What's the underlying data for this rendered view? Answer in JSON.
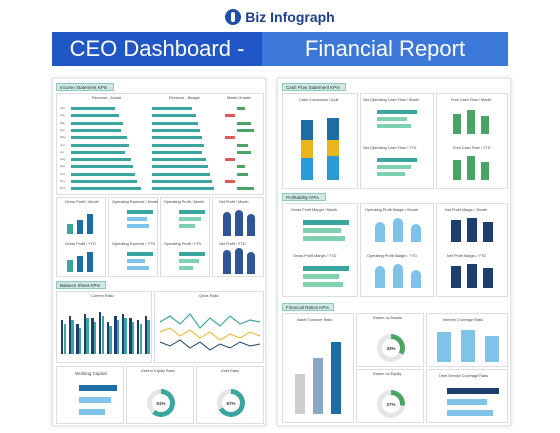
{
  "brand": {
    "name": "Biz Infograph"
  },
  "banner": {
    "left": "CEO Dashboard -",
    "right": "Financial Report"
  },
  "income": {
    "title": "Income Statement KPIs",
    "col1": "Revenue - Actual",
    "col2": "Revenue - Budget",
    "col3": "Model Growth",
    "rows": [
      "Jan",
      "Feb",
      "Mar",
      "Apr",
      "May",
      "Jun",
      "Jul",
      "Aug",
      "Sep",
      "Oct",
      "Nov",
      "Dec"
    ],
    "gross_profit": "Gross Profit / Month",
    "opex": "Operating Expense / Month",
    "op_profit": "Operating Profit / Month",
    "net_profit": "Net Profit / Month",
    "gross_profit_ytd": "Gross Profit / YTD",
    "opex_ytd": "Operating Expense / YTD",
    "op_profit_ytd": "Operating Profit / YTD",
    "net_profit_ytd": "Net Profit / YTD"
  },
  "balance": {
    "title": "Balance Sheet KPIs",
    "current_ratio": "Current Ratio",
    "quick_ratio": "Quick Ratio",
    "working_capital": "Working Capital",
    "debt_equity": "Debt to Equity Ratio",
    "debt_ratio": "Debt Ratio",
    "debt_equity_pct": "61%",
    "debt_ratio_pct": "67%"
  },
  "cashflow": {
    "title": "Cash Flow Statement KPIs",
    "ccc": "Cash Conversion Cycle",
    "net_op_cf_month": "Net Operating Cash Flow / Month",
    "fcf_month": "Free Cash Flow / Month",
    "net_op_cf_ytd": "Net Operating Cash Flow / YTD",
    "fcf_ytd": "Free Cash Flow / YTD"
  },
  "profitability": {
    "title": "Profitability KPIs",
    "gpm_month": "Gross Profit Margin / Month",
    "opm_month": "Operating Profit Margin / Month",
    "npm_month": "Net Profit Margin / Month",
    "gpm_ytd": "Gross Profit Margin / YTD",
    "opm_ytd": "Operating Profit Margin / YTD",
    "npm_ytd": "Net Profit Margin / YTD"
  },
  "ratios": {
    "title": "Financial Ratios KPIs",
    "asset_turnover": "Asset Turnover Ratio",
    "roa": "Return on Assets",
    "roe": "Return on Equity",
    "interest_coverage": "Interest Coverage Ratio",
    "debt_service": "Debt Service Coverage Ratio",
    "roa_pct": "33%",
    "roe_pct": "27%"
  },
  "legend": {
    "actual": "Actual",
    "budget": "Budget",
    "last_year": "Last Year"
  },
  "colors": {
    "teal": "#3aa6a0",
    "navy": "#1c3f6e",
    "lightblue": "#7fc4e8",
    "green": "#4aa564",
    "yellow": "#e8b51c",
    "orange": "#e07a2c"
  }
}
